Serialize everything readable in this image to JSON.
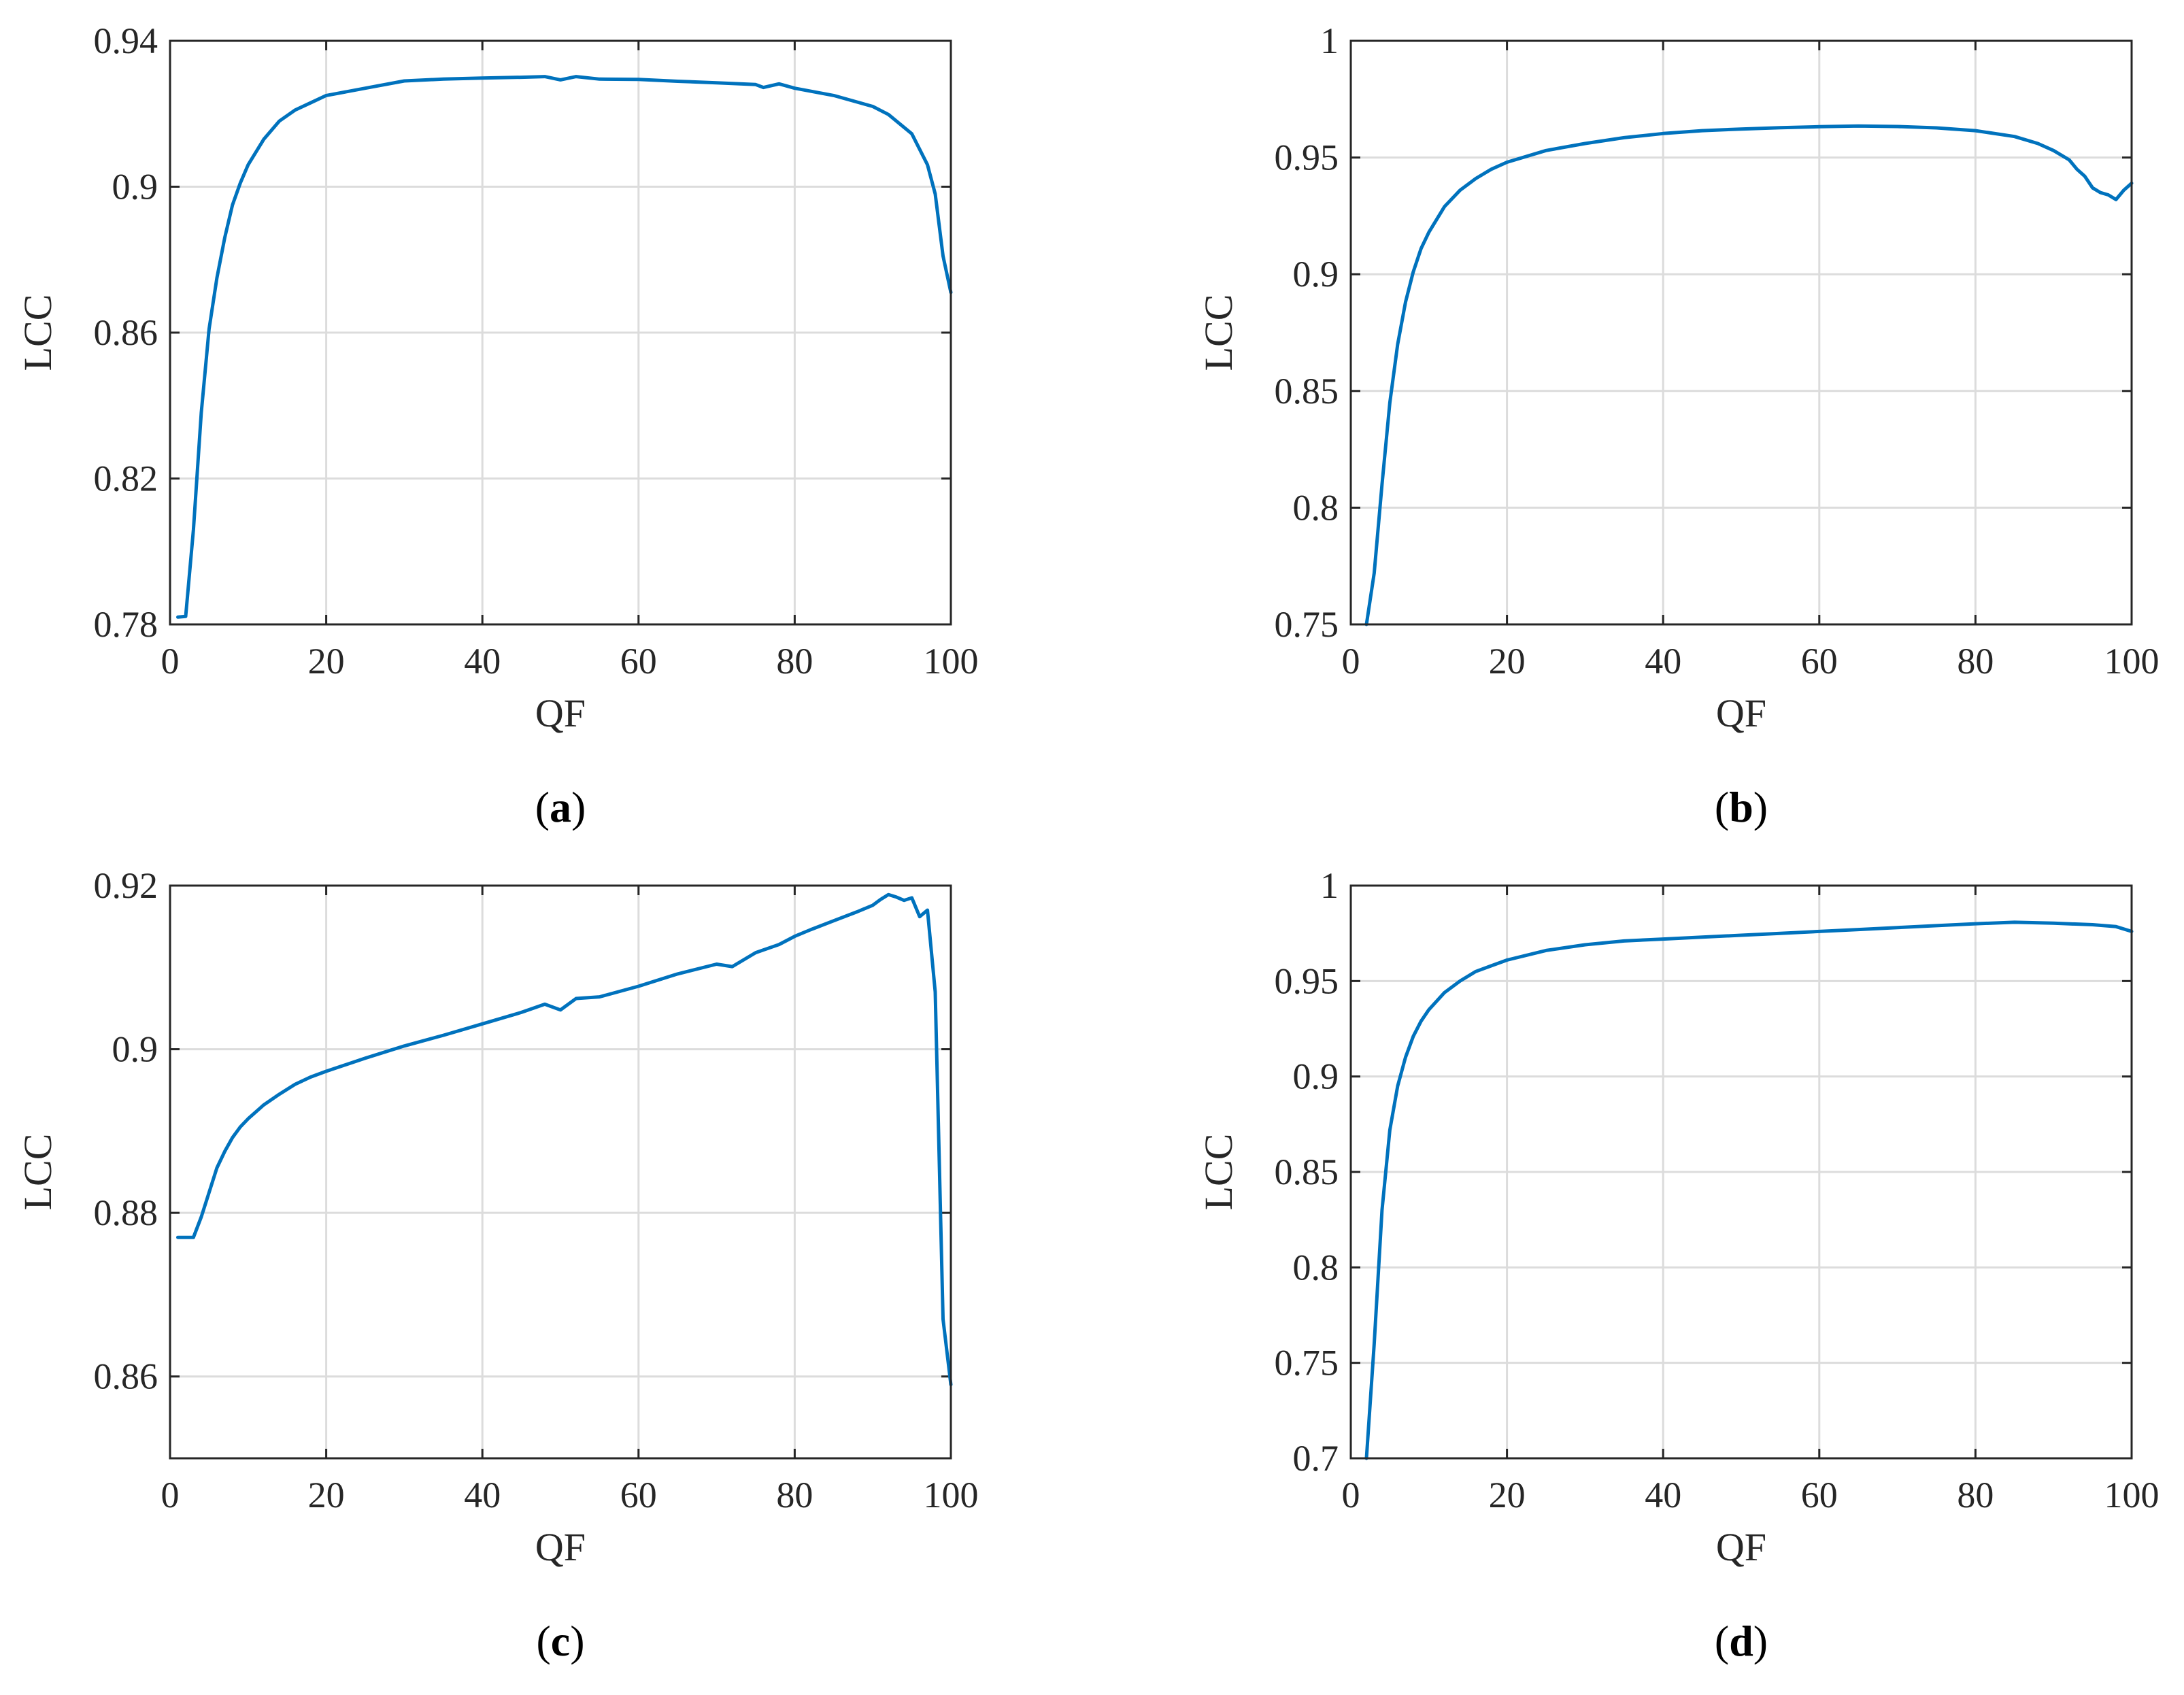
{
  "chart_data": [
    {
      "panel": "(a)",
      "panel_letter": "a",
      "type": "line",
      "xlabel": "QF",
      "ylabel": "LCC",
      "xlim": [
        0,
        100
      ],
      "ylim": [
        0.78,
        0.94
      ],
      "xticks": [
        0,
        20,
        40,
        60,
        80,
        100
      ],
      "yticks": [
        0.78,
        0.82,
        0.86,
        0.9,
        0.94
      ],
      "ytick_labels": [
        "0.78",
        "0.82",
        "0.86",
        "0.9",
        "0.94"
      ],
      "grid": true,
      "line_color": "#0072BD",
      "series": [
        {
          "x": [
            1,
            2,
            3,
            4,
            5,
            6,
            7,
            8,
            9,
            10,
            12,
            14,
            16,
            18,
            20,
            25,
            30,
            35,
            40,
            45,
            48,
            50,
            52,
            55,
            60,
            65,
            70,
            75,
            76,
            78,
            80,
            85,
            90,
            92,
            95,
            97,
            98,
            99,
            100
          ],
          "y": [
            0.782,
            0.7822,
            0.806,
            0.838,
            0.861,
            0.875,
            0.886,
            0.895,
            0.901,
            0.906,
            0.913,
            0.918,
            0.921,
            0.923,
            0.925,
            0.927,
            0.929,
            0.9295,
            0.9298,
            0.93,
            0.9302,
            0.9293,
            0.9302,
            0.9295,
            0.9294,
            0.9289,
            0.9285,
            0.928,
            0.9272,
            0.9282,
            0.927,
            0.925,
            0.922,
            0.9198,
            0.9145,
            0.906,
            0.898,
            0.881,
            0.871
          ]
        }
      ]
    },
    {
      "panel": "(b)",
      "panel_letter": "b",
      "type": "line",
      "xlabel": "QF",
      "ylabel": "LCC",
      "xlim": [
        0,
        100
      ],
      "ylim": [
        0.75,
        1
      ],
      "xticks": [
        0,
        20,
        40,
        60,
        80,
        100
      ],
      "yticks": [
        0.75,
        0.8,
        0.85,
        0.9,
        0.95,
        1
      ],
      "ytick_labels": [
        "0.75",
        "0.8",
        "0.85",
        "0.9",
        "0.95",
        "1"
      ],
      "grid": true,
      "line_color": "#0072BD",
      "series": [
        {
          "x": [
            2,
            3,
            4,
            5,
            6,
            7,
            8,
            9,
            10,
            12,
            14,
            16,
            18,
            20,
            25,
            30,
            35,
            40,
            45,
            50,
            55,
            60,
            65,
            70,
            75,
            80,
            85,
            88,
            90,
            92,
            93,
            94,
            95,
            96,
            97,
            98,
            99,
            100
          ],
          "y": [
            0.75,
            0.772,
            0.81,
            0.845,
            0.87,
            0.888,
            0.901,
            0.911,
            0.918,
            0.929,
            0.936,
            0.941,
            0.945,
            0.948,
            0.953,
            0.956,
            0.9585,
            0.9603,
            0.9615,
            0.9622,
            0.9628,
            0.9632,
            0.9635,
            0.9633,
            0.9627,
            0.9615,
            0.959,
            0.956,
            0.953,
            0.949,
            0.945,
            0.942,
            0.937,
            0.935,
            0.934,
            0.932,
            0.936,
            0.939
          ]
        }
      ]
    },
    {
      "panel": "(c)",
      "panel_letter": "c",
      "type": "line",
      "xlabel": "QF",
      "ylabel": "LCC",
      "xlim": [
        0,
        100
      ],
      "ylim": [
        0.85,
        0.92
      ],
      "xticks": [
        0,
        20,
        40,
        60,
        80,
        100
      ],
      "yticks": [
        0.86,
        0.88,
        0.9,
        0.92
      ],
      "ytick_labels": [
        "0.86",
        "0.88",
        "0.9",
        "0.92"
      ],
      "grid": true,
      "line_color": "#0072BD",
      "series": [
        {
          "x": [
            1,
            2,
            3,
            4,
            5,
            6,
            7,
            8,
            9,
            10,
            12,
            14,
            16,
            18,
            20,
            25,
            30,
            35,
            40,
            45,
            48,
            50,
            52,
            55,
            60,
            65,
            70,
            72,
            75,
            78,
            80,
            82,
            85,
            88,
            90,
            91,
            92,
            93,
            94,
            95,
            96,
            97,
            98,
            99,
            100
          ],
          "y": [
            0.877,
            0.877,
            0.877,
            0.8795,
            0.8825,
            0.8855,
            0.8875,
            0.8892,
            0.8905,
            0.8915,
            0.8932,
            0.8945,
            0.8957,
            0.8966,
            0.8973,
            0.8989,
            0.9004,
            0.9017,
            0.9031,
            0.9045,
            0.9055,
            0.9048,
            0.9062,
            0.9064,
            0.9077,
            0.9092,
            0.9104,
            0.9101,
            0.9118,
            0.9128,
            0.9138,
            0.9146,
            0.9157,
            0.9168,
            0.9176,
            0.9183,
            0.9189,
            0.9186,
            0.9182,
            0.9185,
            0.9162,
            0.917,
            0.907,
            0.867,
            0.859
          ]
        }
      ]
    },
    {
      "panel": "(d)",
      "panel_letter": "d",
      "type": "line",
      "xlabel": "QF",
      "ylabel": "LCC",
      "xlim": [
        0,
        100
      ],
      "ylim": [
        0.7,
        1
      ],
      "xticks": [
        0,
        20,
        40,
        60,
        80,
        100
      ],
      "yticks": [
        0.7,
        0.75,
        0.8,
        0.85,
        0.9,
        0.95,
        1
      ],
      "ytick_labels": [
        "0.7",
        "0.75",
        "0.8",
        "0.85",
        "0.9",
        "0.95",
        "1"
      ],
      "grid": true,
      "line_color": "#0072BD",
      "series": [
        {
          "x": [
            2,
            3,
            4,
            5,
            6,
            7,
            8,
            9,
            10,
            12,
            14,
            16,
            18,
            20,
            25,
            30,
            35,
            40,
            45,
            50,
            55,
            60,
            65,
            70,
            75,
            80,
            85,
            90,
            95,
            98,
            100
          ],
          "y": [
            0.7,
            0.76,
            0.83,
            0.872,
            0.895,
            0.91,
            0.921,
            0.929,
            0.935,
            0.944,
            0.95,
            0.955,
            0.958,
            0.961,
            0.966,
            0.969,
            0.971,
            0.972,
            0.973,
            0.974,
            0.975,
            0.976,
            0.977,
            0.978,
            0.979,
            0.98,
            0.9808,
            0.9803,
            0.9795,
            0.9785,
            0.976
          ]
        }
      ]
    }
  ]
}
